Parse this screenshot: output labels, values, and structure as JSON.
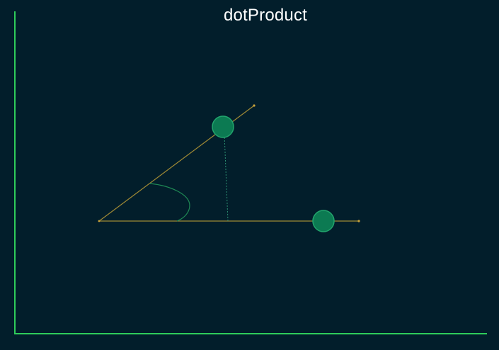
{
  "title": "dotProduct",
  "colors": {
    "background": "#021e2b",
    "axis": "#2ecc5a",
    "vector": "#a08a35",
    "handle_fill": "#0c7a52",
    "handle_stroke": "#22a56d",
    "angle_arc": "#1f8a55",
    "projection": "#2d8f72",
    "title": "#ffffff"
  },
  "icons": {
    "handle_a": "circle-drag-handle",
    "handle_b": "circle-drag-handle"
  }
}
